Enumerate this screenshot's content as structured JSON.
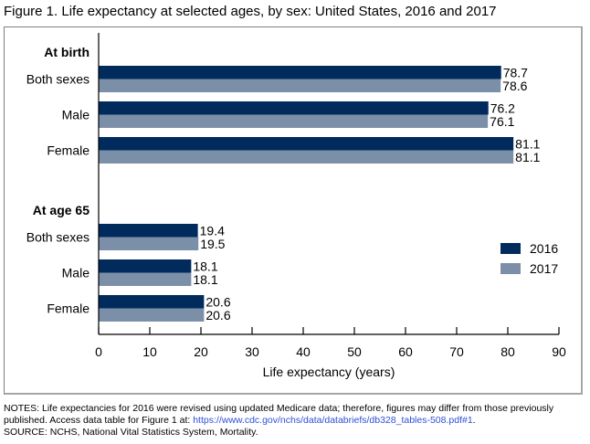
{
  "title": "Figure 1. Life expectancy at selected ages, by sex: United States, 2016 and 2017",
  "chart_data": {
    "type": "bar",
    "orientation": "horizontal",
    "title": "Figure 1. Life expectancy at selected ages, by sex: United States, 2016 and 2017",
    "xlabel": "Life expectancy (years)",
    "ylabel": "",
    "xlim": [
      0,
      90
    ],
    "xticks": [
      0,
      10,
      20,
      30,
      40,
      50,
      60,
      70,
      80,
      90
    ],
    "grid": false,
    "legend_position": "right",
    "groups": [
      {
        "label": "At birth",
        "categories": [
          "Both sexes",
          "Male",
          "Female"
        ],
        "series": [
          {
            "name": "2016",
            "values": [
              78.7,
              76.2,
              81.1
            ]
          },
          {
            "name": "2017",
            "values": [
              78.6,
              76.1,
              81.1
            ]
          }
        ]
      },
      {
        "label": "At age 65",
        "categories": [
          "Both sexes",
          "Male",
          "Female"
        ],
        "series": [
          {
            "name": "2016",
            "values": [
              19.4,
              18.1,
              20.6
            ]
          },
          {
            "name": "2017",
            "values": [
              19.5,
              18.1,
              20.6
            ]
          }
        ]
      }
    ],
    "value_labels": {
      "At birth": {
        "2016": [
          "78.7",
          "76.2",
          "81.1"
        ],
        "2017": [
          "78.6",
          "76.1",
          "81.1"
        ]
      },
      "At age 65": {
        "2016": [
          "19.4",
          "18.1",
          "20.6"
        ],
        "2017": [
          "19.5",
          "18.1",
          "20.6"
        ]
      }
    },
    "legend": [
      {
        "name": "2016",
        "color": "#002b5c"
      },
      {
        "name": "2017",
        "color": "#7b8fa8"
      }
    ]
  },
  "notes": {
    "line1": "NOTES: Life expectancies for 2016 were revised using updated Medicare data; therefore, figures may differ from those previously",
    "line2_prefix": "published. Access data table for Figure 1 at: ",
    "link": "https://www.cdc.gov/nchs/data/databriefs/db328_tables-508.pdf#1",
    "line2_suffix": ".",
    "source": "SOURCE: NCHS, National Vital Statistics System, Mortality."
  }
}
